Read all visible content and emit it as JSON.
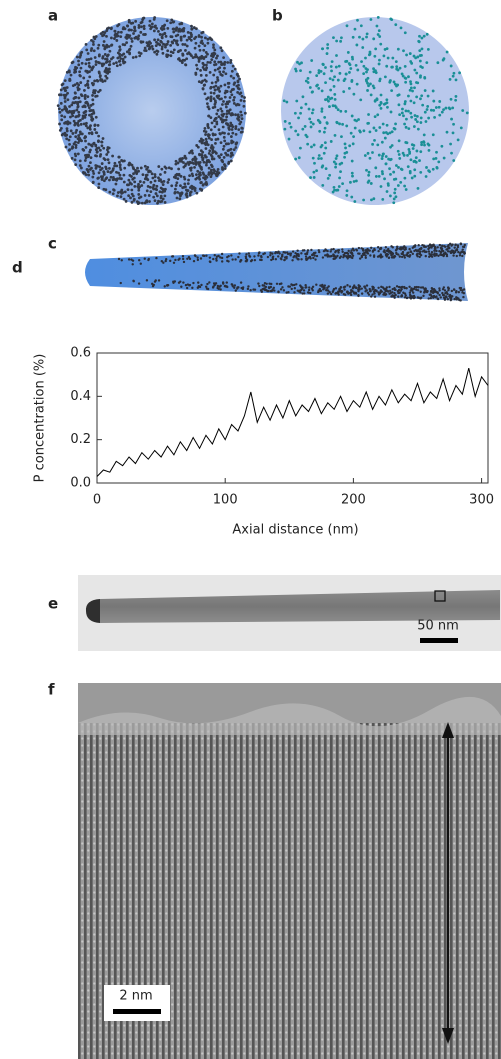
{
  "panel_labels": [
    "a",
    "b",
    "c",
    "d",
    "e",
    "f"
  ],
  "scale_bars": {
    "e": "50 nm",
    "f": "2 nm"
  },
  "chart_data": {
    "type": "line",
    "xlabel": "Axial distance (nm)",
    "ylabel": "P concentration (%)",
    "xlim": [
      0,
      305
    ],
    "ylim": [
      0,
      0.6
    ],
    "xticks": [
      0,
      100,
      200,
      300
    ],
    "yticks": [
      {
        "value": 0,
        "label": "0.0"
      },
      0.2,
      0.4,
      0.6
    ],
    "x": [
      0,
      5,
      10,
      15,
      20,
      25,
      30,
      35,
      40,
      45,
      50,
      55,
      60,
      65,
      70,
      75,
      80,
      85,
      90,
      95,
      100,
      105,
      110,
      115,
      120,
      125,
      130,
      135,
      140,
      145,
      150,
      155,
      160,
      165,
      170,
      175,
      180,
      185,
      190,
      195,
      200,
      205,
      210,
      215,
      220,
      225,
      230,
      235,
      240,
      245,
      250,
      255,
      260,
      265,
      270,
      275,
      280,
      285,
      290,
      295,
      300,
      305
    ],
    "series": [
      {
        "color": "#000000",
        "values": [
          0.03,
          0.06,
          0.05,
          0.1,
          0.08,
          0.12,
          0.09,
          0.14,
          0.11,
          0.15,
          0.12,
          0.17,
          0.13,
          0.19,
          0.15,
          0.21,
          0.16,
          0.22,
          0.18,
          0.25,
          0.2,
          0.27,
          0.24,
          0.31,
          0.42,
          0.28,
          0.35,
          0.29,
          0.36,
          0.3,
          0.38,
          0.31,
          0.36,
          0.33,
          0.39,
          0.32,
          0.37,
          0.34,
          0.4,
          0.33,
          0.38,
          0.35,
          0.42,
          0.34,
          0.4,
          0.36,
          0.43,
          0.37,
          0.41,
          0.38,
          0.46,
          0.37,
          0.42,
          0.39,
          0.48,
          0.38,
          0.45,
          0.41,
          0.53,
          0.4,
          0.49,
          0.45
        ]
      }
    ]
  }
}
